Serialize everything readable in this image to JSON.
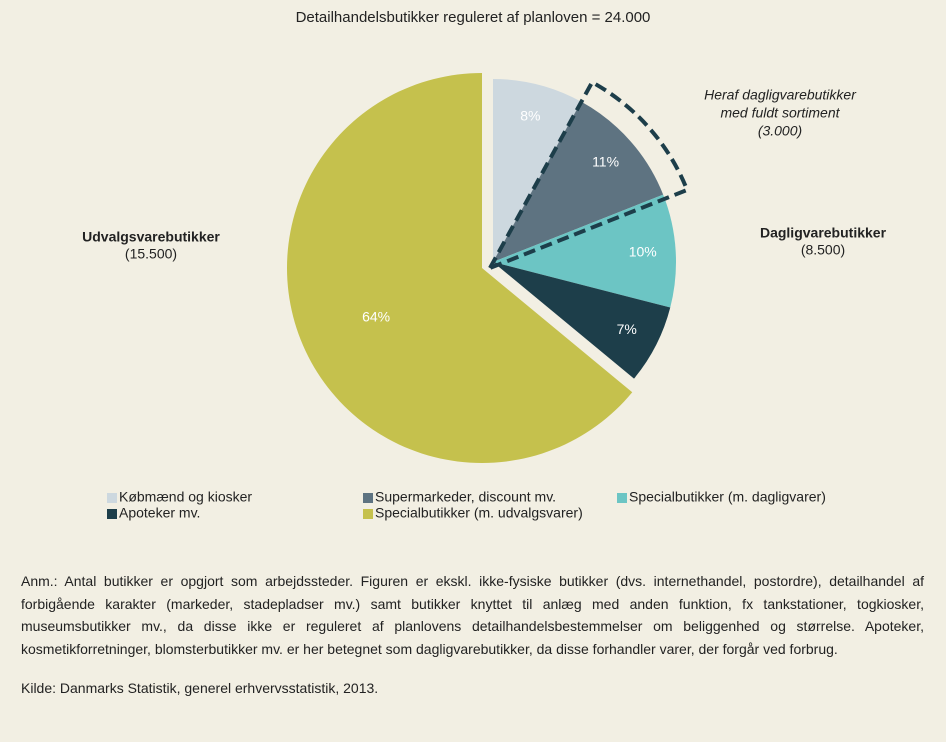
{
  "chart_data": {
    "type": "pie",
    "title": "Detailhandelsbutikker reguleret af planloven = 24.000",
    "categories": [
      "Købmænd og kiosker",
      "Supermarkeder, discount mv.",
      "Specialbutikker (m. dagligvarer)",
      "Apoteker mv.",
      "Specialbutikker (m. udvalgsvarer)"
    ],
    "values": [
      8,
      11,
      10,
      7,
      64
    ],
    "value_labels": [
      "8%",
      "11%",
      "10%",
      "7%",
      "64%"
    ],
    "colors": [
      "#cdd8df",
      "#5e7381",
      "#6cc5c4",
      "#1d3e4a",
      "#c5c14d"
    ],
    "legend": "bottom",
    "annotations": [
      {
        "lines": [
          "Heraf dagligvarebutikker",
          "med fuldt sortiment",
          "(3.000)"
        ]
      },
      {
        "lines": [
          "Udvalgsvarebutikker",
          "(15.500)"
        ]
      },
      {
        "lines": [
          "Dagligvarebutikker",
          "(8.500)"
        ]
      }
    ]
  },
  "notes": {
    "text": "Anm.: Antal butikker er opgjort som arbejdssteder. Figuren er ekskl. ikke-fysiske butikker (dvs. internethandel, postordre), detailhandel af forbigående karakter (markeder, stadepladser mv.) samt butikker knyttet til anlæg med anden funktion, fx tankstationer, togkiosker, museumsbutikker mv., da disse ikke er reguleret af planlovens detailhandelsbestemmelser om beliggenhed og størrelse. Apoteker, kosmetikforretninger, blomsterbutikker mv. er her betegnet som dagligvarebutikker, da disse forhandler varer, der forgår ved forbrug.",
    "source": "Kilde: Danmarks Statistik, generel erhvervsstatistik, 2013."
  }
}
